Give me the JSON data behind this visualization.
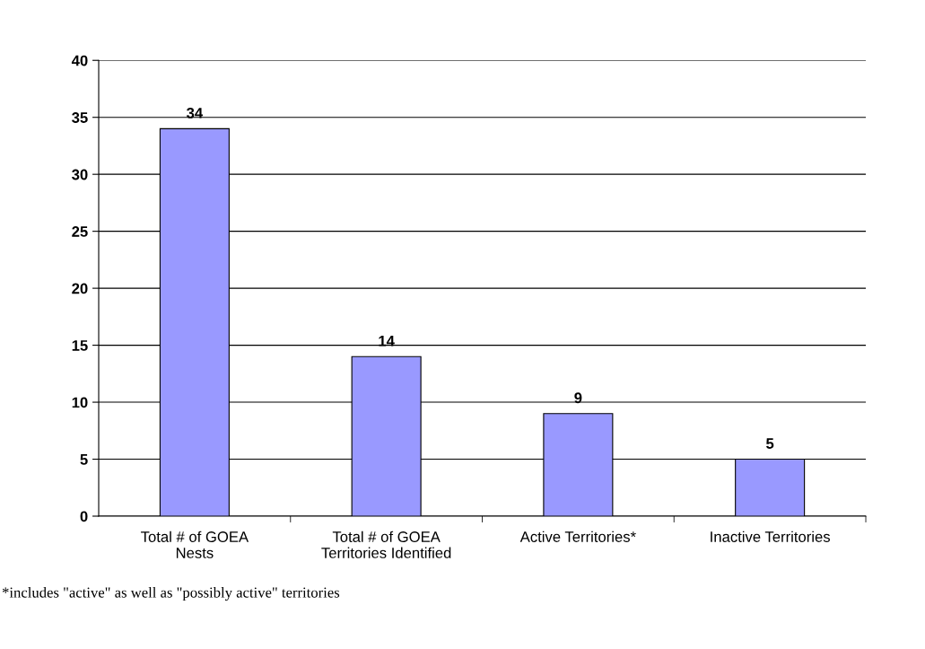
{
  "chart_data": {
    "type": "bar",
    "categories": [
      "Total # of GOEA\nNests",
      "Total # of GOEA\nTerritories Identified",
      "Active Territories*",
      "Inactive Territories"
    ],
    "values": [
      34,
      14,
      9,
      5
    ],
    "color": "#9999ff",
    "ylim": [
      0,
      40
    ],
    "yticks": [
      0,
      5,
      10,
      15,
      20,
      25,
      30,
      35,
      40
    ],
    "grid": "y",
    "data_labels": true,
    "annotations": [
      "*includes \"active\" as well as \"possibly active\" territories"
    ]
  }
}
